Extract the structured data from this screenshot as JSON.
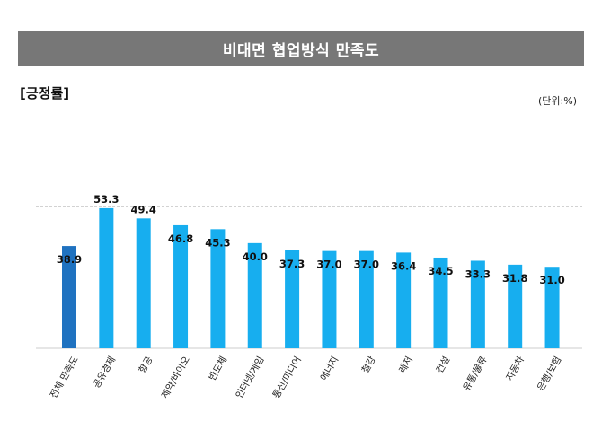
{
  "header": {
    "title": "비대면 협업방식 만족도",
    "subtitle": "[긍정률]",
    "unit": "(단위:%)"
  },
  "colors": {
    "title_bg": "#777777",
    "highlight_bar": "#1f72c0",
    "bar": "#17aeef",
    "reference_line": "#888888"
  },
  "chart_data": {
    "type": "bar",
    "categories": [
      "전체 만족도",
      "공유경제",
      "항공",
      "제약/바이오",
      "반도체",
      "인터넷/게임",
      "통신/미디어",
      "에너지",
      "철강",
      "레저",
      "건설",
      "유통/물류",
      "자동차",
      "은행/보험"
    ],
    "values": [
      38.9,
      53.3,
      49.4,
      46.8,
      45.3,
      40.0,
      37.3,
      37.0,
      37.0,
      36.4,
      34.5,
      33.3,
      31.8,
      31.0
    ],
    "value_labels": [
      "38.9",
      "53.3",
      "49.4",
      "46.8",
      "45.3",
      "40.0",
      "37.3",
      "37.0",
      "37.0",
      "36.4",
      "34.5",
      "33.3",
      "31.8",
      "31.0"
    ],
    "highlight_index": 0,
    "reference_line": "dashed",
    "ylim": [
      0,
      56
    ],
    "grid": false,
    "legend": "none"
  }
}
